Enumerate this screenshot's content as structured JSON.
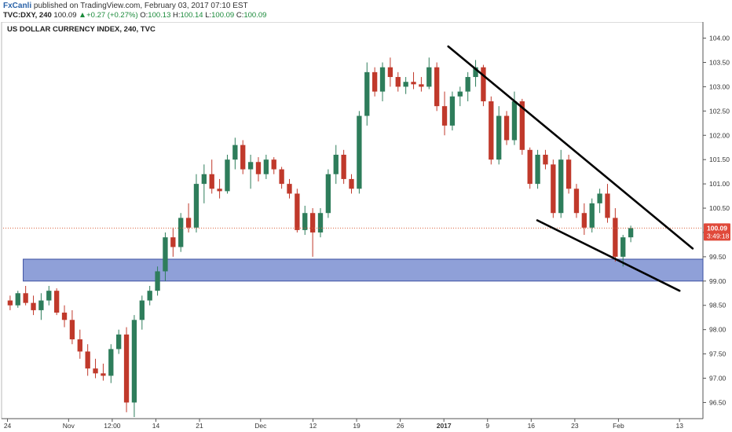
{
  "header": {
    "author": "FxCanli",
    "published": " published on TradingView.com, February 03, 2017 07:10 EST",
    "symbol": "TVC:DXY, 240",
    "last": "100.09",
    "change": "+0.27 (+0.27%)",
    "o_label": "O:",
    "o_value": "100.13",
    "h_label": "H:",
    "h_value": "100.14",
    "l_label": "L:",
    "l_value": "100.09",
    "c_label": "C:",
    "c_value": "100.09"
  },
  "colors": {
    "up": "#2e7d5b",
    "down": "#c0392b",
    "zone_fill": "#7b8fd1",
    "zone_stroke": "#3b4fa0",
    "price_line": "#d9603b",
    "trendline": "#000000",
    "price_badge": "#e0493a"
  },
  "chart_data": {
    "type": "candlestick",
    "title": "US DOLLAR CURRENCY INDEX, 240, TVC",
    "y_ticks": [
      "104.00",
      "103.50",
      "103.00",
      "102.50",
      "102.00",
      "101.50",
      "101.00",
      "100.50",
      "100.00",
      "99.50",
      "99.00",
      "98.50",
      "98.00",
      "97.50",
      "97.00",
      "96.50"
    ],
    "y_tick_values": [
      104,
      103.5,
      103,
      102.5,
      102,
      101.5,
      101,
      100.5,
      100,
      99.5,
      99,
      98.5,
      98,
      97.5,
      97,
      96.5
    ],
    "ylim": [
      96.2,
      104.3
    ],
    "x_ticks": [
      "24",
      "Nov",
      "12:00",
      "14",
      "21",
      "Dec",
      "12",
      "19",
      "26",
      "2017",
      "9",
      "16",
      "23",
      "Feb",
      "13"
    ],
    "x_tick_positions": [
      0.5,
      7.5,
      12.5,
      17.5,
      22.5,
      29.5,
      35.5,
      40.5,
      45.5,
      50.5,
      55.5,
      60.5,
      65.5,
      70.5,
      77.5
    ],
    "x_bold": [
      "2017"
    ],
    "xlim": [
      0,
      80
    ],
    "current_price": "100.09",
    "current_price_value": 100.09,
    "countdown": "3:49:18",
    "support_zone": {
      "low": 99.0,
      "high": 99.45,
      "x_start": 2.3
    },
    "trendlines": [
      {
        "x1": 51.0,
        "y1": 103.83,
        "x2": 79.0,
        "y2": 99.67
      },
      {
        "x1": 61.2,
        "y1": 100.25,
        "x2": 77.5,
        "y2": 98.8
      }
    ],
    "ohlc": [
      [
        98.6,
        98.7,
        98.4,
        98.5
      ],
      [
        98.5,
        98.8,
        98.45,
        98.75
      ],
      [
        98.75,
        98.9,
        98.5,
        98.55
      ],
      [
        98.55,
        98.7,
        98.3,
        98.4
      ],
      [
        98.4,
        98.75,
        98.2,
        98.6
      ],
      [
        98.6,
        98.9,
        98.5,
        98.8
      ],
      [
        98.8,
        98.85,
        98.3,
        98.35
      ],
      [
        98.35,
        98.5,
        98.05,
        98.2
      ],
      [
        98.2,
        98.4,
        97.7,
        97.8
      ],
      [
        97.8,
        98.0,
        97.4,
        97.55
      ],
      [
        97.55,
        97.7,
        97.05,
        97.2
      ],
      [
        97.2,
        97.4,
        97.0,
        97.1
      ],
      [
        97.1,
        97.3,
        96.95,
        97.05
      ],
      [
        97.05,
        97.7,
        96.9,
        97.6
      ],
      [
        97.6,
        98.0,
        97.5,
        97.9
      ],
      [
        97.9,
        98.05,
        96.3,
        96.5
      ],
      [
        96.5,
        98.3,
        96.2,
        98.2
      ],
      [
        98.2,
        98.7,
        98.0,
        98.6
      ],
      [
        98.6,
        98.9,
        98.5,
        98.8
      ],
      [
        98.8,
        99.3,
        98.7,
        99.2
      ],
      [
        99.2,
        100.0,
        99.0,
        99.9
      ],
      [
        99.9,
        100.1,
        99.5,
        99.7
      ],
      [
        99.7,
        100.4,
        99.6,
        100.3
      ],
      [
        100.3,
        100.6,
        100.0,
        100.1
      ],
      [
        100.1,
        101.2,
        100.0,
        101.0
      ],
      [
        101.0,
        101.4,
        100.6,
        101.2
      ],
      [
        101.2,
        101.5,
        100.8,
        100.9
      ],
      [
        100.9,
        101.1,
        100.7,
        100.85
      ],
      [
        100.85,
        101.6,
        100.8,
        101.5
      ],
      [
        101.5,
        101.95,
        101.3,
        101.8
      ],
      [
        101.8,
        101.9,
        101.2,
        101.3
      ],
      [
        101.3,
        101.6,
        100.9,
        101.45
      ],
      [
        101.45,
        101.55,
        101.05,
        101.2
      ],
      [
        101.2,
        101.6,
        101.1,
        101.5
      ],
      [
        101.5,
        101.55,
        101.2,
        101.3
      ],
      [
        101.3,
        101.35,
        100.9,
        101.0
      ],
      [
        101.0,
        101.1,
        100.7,
        100.8
      ],
      [
        100.8,
        100.9,
        100.0,
        100.05
      ],
      [
        100.05,
        100.55,
        99.95,
        100.4
      ],
      [
        100.4,
        100.5,
        99.5,
        100.0
      ],
      [
        100.0,
        100.5,
        99.9,
        100.4
      ],
      [
        100.4,
        101.3,
        100.3,
        101.2
      ],
      [
        101.2,
        101.8,
        101.0,
        101.6
      ],
      [
        101.6,
        101.7,
        101.0,
        101.1
      ],
      [
        101.1,
        101.2,
        100.8,
        100.9
      ],
      [
        100.9,
        102.5,
        100.8,
        102.4
      ],
      [
        102.4,
        103.5,
        102.2,
        103.3
      ],
      [
        103.3,
        103.4,
        102.8,
        102.9
      ],
      [
        102.9,
        103.5,
        102.7,
        103.4
      ],
      [
        103.4,
        103.6,
        103.0,
        103.2
      ],
      [
        103.2,
        103.3,
        102.9,
        103.0
      ],
      [
        103.0,
        103.2,
        102.85,
        103.1
      ],
      [
        103.1,
        103.3,
        102.95,
        103.05
      ],
      [
        103.05,
        103.2,
        102.9,
        103.0
      ],
      [
        103.0,
        103.6,
        102.95,
        103.4
      ],
      [
        103.4,
        103.5,
        102.5,
        102.6
      ],
      [
        102.6,
        102.9,
        102.0,
        102.2
      ],
      [
        102.2,
        102.9,
        102.1,
        102.8
      ],
      [
        102.8,
        103.0,
        102.6,
        102.9
      ],
      [
        102.9,
        103.3,
        102.7,
        103.2
      ],
      [
        103.2,
        103.55,
        103.0,
        103.4
      ],
      [
        103.4,
        103.45,
        102.6,
        102.7
      ],
      [
        102.7,
        102.8,
        101.4,
        101.5
      ],
      [
        101.5,
        102.6,
        101.4,
        102.4
      ],
      [
        102.4,
        102.5,
        101.8,
        101.9
      ],
      [
        101.9,
        102.9,
        101.8,
        102.7
      ],
      [
        102.7,
        102.75,
        101.6,
        101.7
      ],
      [
        101.7,
        101.75,
        100.9,
        101.0
      ],
      [
        101.0,
        101.7,
        100.9,
        101.6
      ],
      [
        101.6,
        101.7,
        101.3,
        101.4
      ],
      [
        101.4,
        101.5,
        100.3,
        100.4
      ],
      [
        100.4,
        101.7,
        100.3,
        101.5
      ],
      [
        101.5,
        101.6,
        100.8,
        100.9
      ],
      [
        100.9,
        101.0,
        100.3,
        100.4
      ],
      [
        100.4,
        100.6,
        99.95,
        100.1
      ],
      [
        100.1,
        100.7,
        100.0,
        100.6
      ],
      [
        100.6,
        100.9,
        100.4,
        100.8
      ],
      [
        100.8,
        101.0,
        100.2,
        100.3
      ],
      [
        100.3,
        100.5,
        99.4,
        99.5
      ],
      [
        99.5,
        99.95,
        99.3,
        99.9
      ],
      [
        99.9,
        100.14,
        99.8,
        100.09
      ]
    ]
  }
}
